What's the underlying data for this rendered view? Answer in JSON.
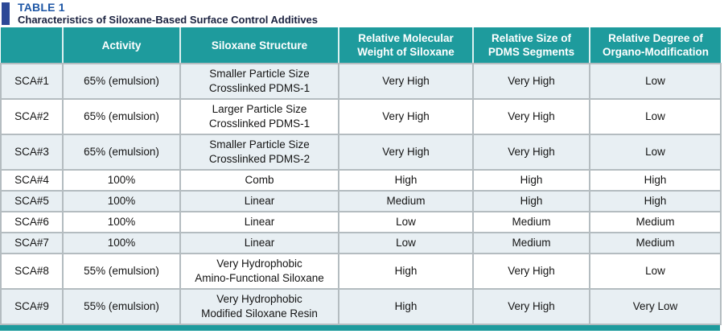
{
  "title": {
    "tag": "TABLE 1",
    "subtitle": "Characteristics of Siloxane-Based Surface Control Additives"
  },
  "colors": {
    "header_teal": "#1e9b9d",
    "title_blue": "#1d56a5",
    "subtitle_navy": "#1b2240",
    "accent_bar_blue": "#2c4897",
    "alt_row_bg": "#e8eff3",
    "row_bg": "#ffffff",
    "cell_border_gray": "#b4bcc0",
    "header_text": "#ffffff",
    "body_text": "#141414"
  },
  "table": {
    "columns": [
      "",
      "Activity",
      "Siloxane Structure",
      "Relative Molecular\nWeight of Siloxane",
      "Relative Size of\nPDMS Segments",
      "Relative Degree of\nOrgano-Modification"
    ],
    "rows": [
      {
        "name": "SCA#1",
        "activity": "65% (emulsion)",
        "structure": "Smaller Particle Size\nCrosslinked PDMS-1",
        "molecular_weight": "Very High",
        "pdms_size": "Very High",
        "organo_modification": "Low"
      },
      {
        "name": "SCA#2",
        "activity": "65% (emulsion)",
        "structure": "Larger Particle Size\nCrosslinked PDMS-1",
        "molecular_weight": "Very High",
        "pdms_size": "Very High",
        "organo_modification": "Low"
      },
      {
        "name": "SCA#3",
        "activity": "65% (emulsion)",
        "structure": "Smaller Particle Size\nCrosslinked PDMS-2",
        "molecular_weight": "Very High",
        "pdms_size": "Very High",
        "organo_modification": "Low"
      },
      {
        "name": "SCA#4",
        "activity": "100%",
        "structure": "Comb",
        "molecular_weight": "High",
        "pdms_size": "High",
        "organo_modification": "High"
      },
      {
        "name": "SCA#5",
        "activity": "100%",
        "structure": "Linear",
        "molecular_weight": "Medium",
        "pdms_size": "High",
        "organo_modification": "High"
      },
      {
        "name": "SCA#6",
        "activity": "100%",
        "structure": "Linear",
        "molecular_weight": "Low",
        "pdms_size": "Medium",
        "organo_modification": "Medium"
      },
      {
        "name": "SCA#7",
        "activity": "100%",
        "structure": "Linear",
        "molecular_weight": "Low",
        "pdms_size": "Medium",
        "organo_modification": "Medium"
      },
      {
        "name": "SCA#8",
        "activity": "55% (emulsion)",
        "structure": "Very Hydrophobic\nAmino-Functional Siloxane",
        "molecular_weight": "High",
        "pdms_size": "Very High",
        "organo_modification": "Low"
      },
      {
        "name": "SCA#9",
        "activity": "55% (emulsion)",
        "structure": "Very Hydrophobic\nModified Siloxane Resin",
        "molecular_weight": "High",
        "pdms_size": "Very High",
        "organo_modification": "Very Low"
      }
    ]
  }
}
